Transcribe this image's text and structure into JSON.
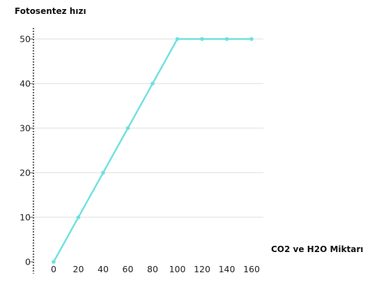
{
  "chart_data": {
    "type": "line",
    "xlabel": "CO2 ve H2O Miktarı",
    "ylabel": "Fotosentez hızı",
    "x": [
      0,
      20,
      40,
      60,
      80,
      100,
      120,
      140,
      160
    ],
    "series": [
      {
        "values": [
          0,
          10,
          20,
          30,
          40,
          50,
          50,
          50,
          50
        ]
      }
    ],
    "x_ticks": [
      "0",
      "20",
      "40",
      "60",
      "80",
      "100",
      "120",
      "140",
      "160"
    ],
    "y_ticks": [
      "0",
      "10",
      "20",
      "30",
      "40",
      "50"
    ],
    "xlim": [
      -17,
      172
    ],
    "ylim": [
      0,
      50
    ],
    "grid": "horizontal",
    "colors": {
      "series": "#6ee0e0",
      "axis": "#666666",
      "grid": "#dedede"
    }
  }
}
